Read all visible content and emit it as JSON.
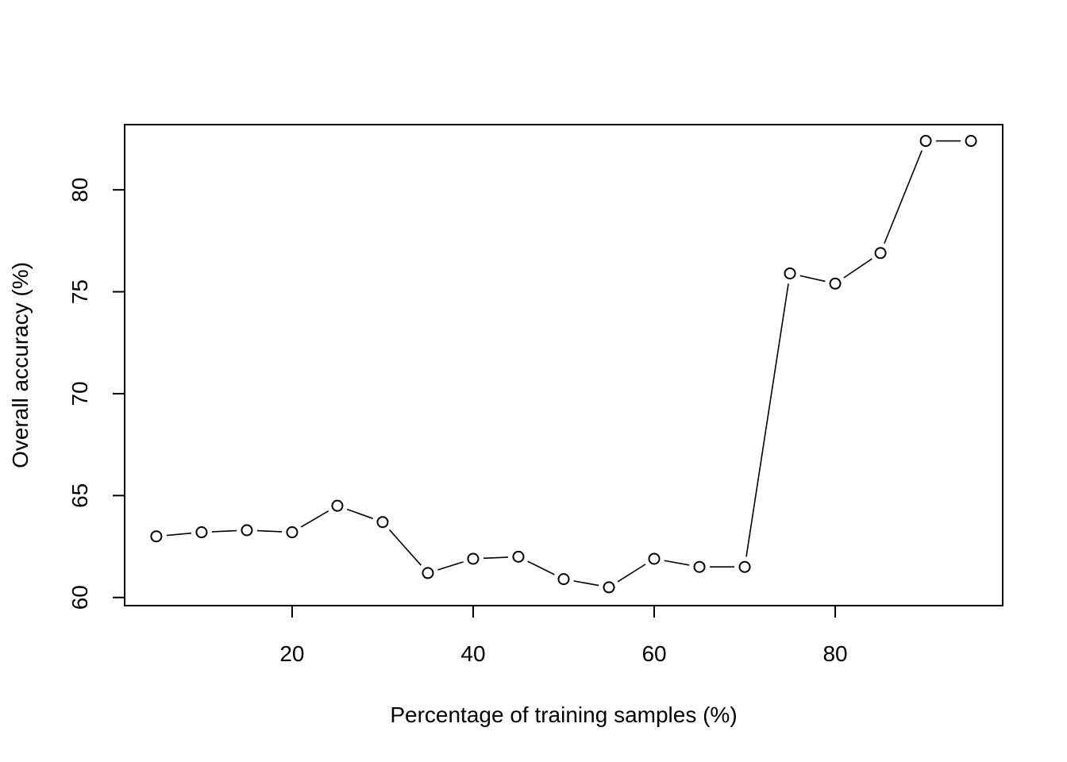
{
  "chart_data": {
    "type": "line",
    "title": "",
    "xlabel": "Percentage of training samples (%)",
    "ylabel": "Overall accuracy (%)",
    "xlim": [
      1.5,
      98.5
    ],
    "ylim": [
      59.6,
      83.2
    ],
    "x_ticks": [
      20,
      40,
      60,
      80
    ],
    "y_ticks": [
      60,
      65,
      70,
      75,
      80
    ],
    "grid": false,
    "marker": "open-circle",
    "line_style": "broken-line-between-points",
    "colors": {
      "line": "#000000",
      "marker": "#000000",
      "background": "#ffffff"
    },
    "series": [
      {
        "x": [
          5,
          10,
          15,
          20,
          25,
          30,
          35,
          40,
          45,
          50,
          55,
          60,
          65,
          70,
          75,
          80,
          85,
          90,
          95
        ],
        "y": [
          63.0,
          63.2,
          63.3,
          63.2,
          64.5,
          63.7,
          61.2,
          61.9,
          62.0,
          60.9,
          60.5,
          61.9,
          61.5,
          61.5,
          75.9,
          75.4,
          76.9,
          82.4,
          82.4
        ]
      }
    ]
  }
}
